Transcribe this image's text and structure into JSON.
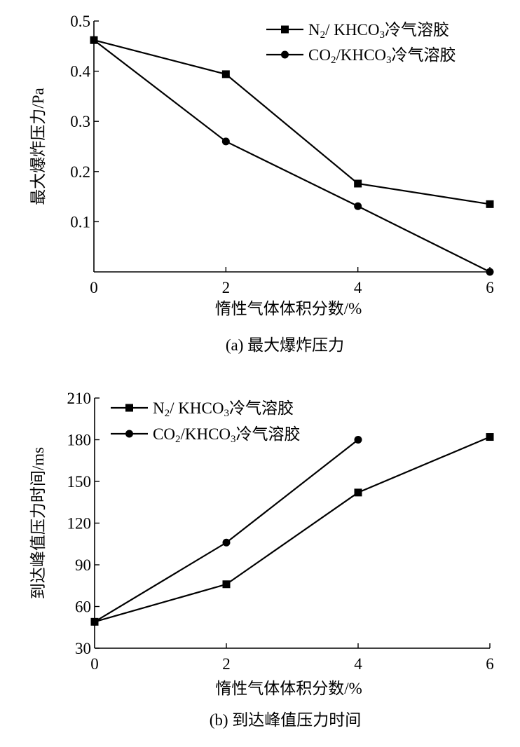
{
  "chart_data": [
    {
      "type": "line",
      "title": "",
      "caption": "(a)  最大爆炸压力",
      "xlabel": "惰性气体体积分数/%",
      "ylabel": "最大爆炸压力/Pa",
      "x": [
        0,
        2,
        4,
        6
      ],
      "xticks": [
        0,
        2,
        4,
        6
      ],
      "xlim": [
        0,
        6
      ],
      "yticks": [
        0.1,
        0.2,
        0.3,
        0.4,
        0.5
      ],
      "ylim": [
        0,
        0.5
      ],
      "legend_position": "top-right",
      "series": [
        {
          "name": "N2/ KHCO3冷气溶胶",
          "label_parts": [
            "N",
            "2",
            "/ KHCO",
            "3",
            "冷气溶胶"
          ],
          "marker": "square",
          "values": [
            0.462,
            0.394,
            0.176,
            0.135
          ]
        },
        {
          "name": "CO2/KHCO3冷气溶胶",
          "label_parts": [
            "CO",
            "2",
            "/KHCO",
            "3",
            "冷气溶胶"
          ],
          "marker": "circle",
          "values": [
            0.462,
            0.26,
            0.131,
            0.0
          ]
        }
      ]
    },
    {
      "type": "line",
      "title": "",
      "caption": "(b)  到达峰值压力时间",
      "xlabel": "惰性气体体积分数/%",
      "ylabel": "到达峰值压力时间/ms",
      "x": [
        0,
        2,
        4,
        6
      ],
      "xticks": [
        0,
        2,
        4,
        6
      ],
      "xlim": [
        0,
        6
      ],
      "yticks": [
        30,
        60,
        90,
        120,
        150,
        180,
        210
      ],
      "ylim": [
        30,
        210
      ],
      "legend_position": "top-left",
      "series": [
        {
          "name": "N2/ KHCO3冷气溶胶",
          "label_parts": [
            "N",
            "2",
            "/ KHCO",
            "3",
            "冷气溶胶"
          ],
          "marker": "square",
          "values": [
            49,
            76,
            142,
            182
          ]
        },
        {
          "name": "CO2/KHCO3冷气溶胶",
          "label_parts": [
            "CO",
            "2",
            "/KHCO",
            "3",
            "冷气溶胶"
          ],
          "marker": "circle",
          "values": [
            49,
            106,
            180,
            null
          ]
        }
      ]
    }
  ]
}
